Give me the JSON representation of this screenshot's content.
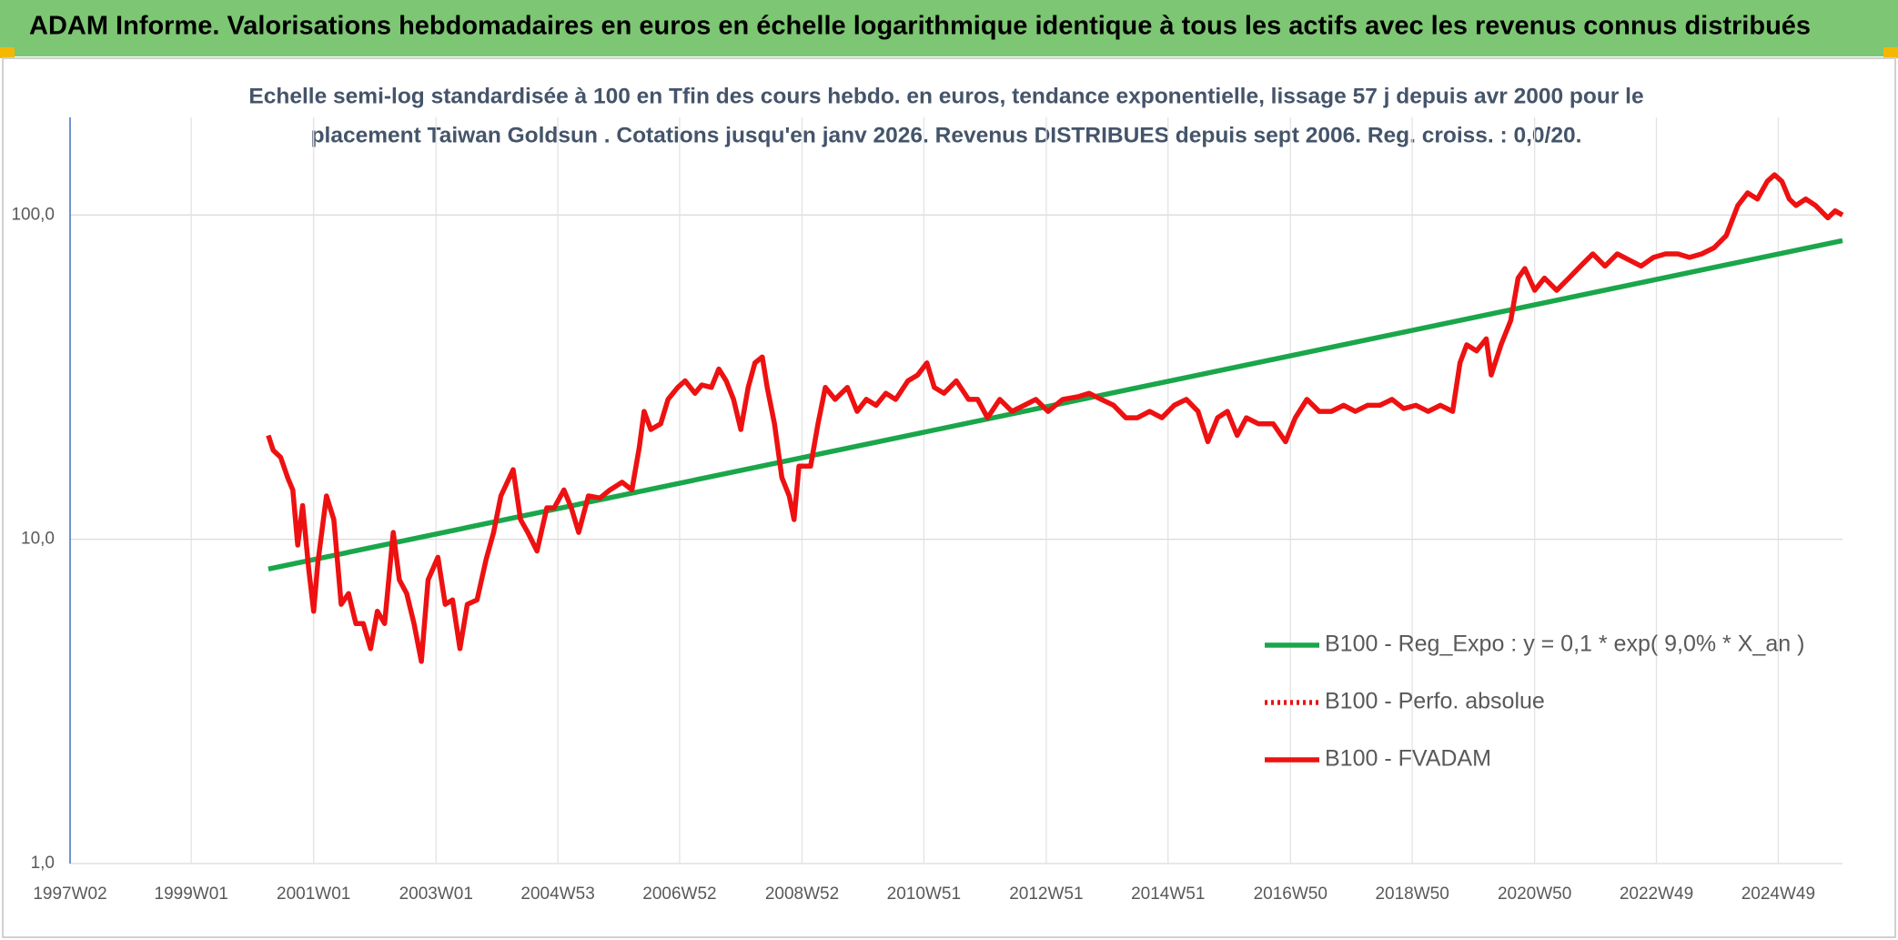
{
  "header": {
    "title": "ADAM Informe. Valorisations hebdomadaires en euros en échelle logarithmique identique à tous les actifs avec les revenus connus distribués"
  },
  "chart_data": {
    "type": "line",
    "subtitle": [
      "Echelle semi-log standardisée à 100 en Tfin des cours hebdo. en euros, tendance exponentielle, lissage 57 j depuis avr 2000 pour le",
      "placement Taiwan Goldsun . Cotations jusqu'en janv 2026. Revenus DISTRIBUES depuis sept 2006. Reg. croiss. : 0,0/20."
    ],
    "yscale": "log",
    "grid": true,
    "ylim": [
      1,
      200
    ],
    "yticks": [
      {
        "value": 1,
        "label": "1,0"
      },
      {
        "value": 10,
        "label": "10,0"
      },
      {
        "value": 100,
        "label": "100,0"
      }
    ],
    "xlim": [
      1997.02,
      2025.98
    ],
    "xticks": [
      {
        "value": 1997.02,
        "label": "1997W02"
      },
      {
        "value": 1999.0,
        "label": "1999W01"
      },
      {
        "value": 2001.0,
        "label": "2001W01"
      },
      {
        "value": 2003.0,
        "label": "2003W01"
      },
      {
        "value": 2004.99,
        "label": "2004W53"
      },
      {
        "value": 2006.98,
        "label": "2006W52"
      },
      {
        "value": 2008.98,
        "label": "2008W52"
      },
      {
        "value": 2010.97,
        "label": "2010W51"
      },
      {
        "value": 2012.97,
        "label": "2012W51"
      },
      {
        "value": 2014.96,
        "label": "2014W51"
      },
      {
        "value": 2016.96,
        "label": "2016W50"
      },
      {
        "value": 2018.95,
        "label": "2018W50"
      },
      {
        "value": 2020.95,
        "label": "2020W50"
      },
      {
        "value": 2022.94,
        "label": "2022W49"
      },
      {
        "value": 2024.93,
        "label": "2024W49"
      }
    ],
    "series": [
      {
        "name": "B100 - Reg_Expo : y = 0,1 * exp( 9,0% *  X_an )",
        "color": "#1aa64a",
        "dash": "solid",
        "x": [
          2000.26,
          2025.98
        ],
        "values": [
          8.1,
          83.4
        ]
      },
      {
        "name": "B100 - Perfo. absolue",
        "color": "#ee1111",
        "dash": "dotted",
        "x": [],
        "values": []
      },
      {
        "name": "B100 - FVADAM",
        "color": "#ee1111",
        "dash": "solid",
        "x": [
          2000.26,
          2000.34,
          2000.46,
          2000.58,
          2000.66,
          2000.74,
          2000.82,
          2000.92,
          2001.0,
          2001.07,
          2001.21,
          2001.33,
          2001.45,
          2001.57,
          2001.69,
          2001.81,
          2001.93,
          2002.04,
          2002.16,
          2002.3,
          2002.4,
          2002.52,
          2002.64,
          2002.76,
          2002.87,
          2003.03,
          2003.15,
          2003.27,
          2003.39,
          2003.51,
          2003.67,
          2003.82,
          2003.94,
          2004.06,
          2004.26,
          2004.38,
          2004.5,
          2004.65,
          2004.81,
          2004.93,
          2005.09,
          2005.21,
          2005.33,
          2005.49,
          2005.68,
          2005.84,
          2006.04,
          2006.2,
          2006.32,
          2006.4,
          2006.51,
          2006.67,
          2006.79,
          2006.95,
          2007.07,
          2007.23,
          2007.34,
          2007.5,
          2007.62,
          2007.74,
          2007.86,
          2007.98,
          2008.1,
          2008.21,
          2008.33,
          2008.41,
          2008.53,
          2008.65,
          2008.77,
          2008.85,
          2008.93,
          2009.12,
          2009.24,
          2009.36,
          2009.52,
          2009.72,
          2009.88,
          2010.03,
          2010.19,
          2010.35,
          2010.51,
          2010.71,
          2010.87,
          2011.02,
          2011.14,
          2011.3,
          2011.5,
          2011.7,
          2011.85,
          2012.01,
          2012.21,
          2012.41,
          2012.61,
          2012.8,
          2013.0,
          2013.24,
          2013.48,
          2013.67,
          2013.87,
          2014.07,
          2014.27,
          2014.46,
          2014.66,
          2014.86,
          2015.06,
          2015.26,
          2015.45,
          2015.61,
          2015.77,
          2015.93,
          2016.09,
          2016.24,
          2016.44,
          2016.68,
          2016.88,
          2017.04,
          2017.23,
          2017.43,
          2017.63,
          2017.83,
          2018.02,
          2018.22,
          2018.42,
          2018.62,
          2018.81,
          2019.01,
          2019.21,
          2019.41,
          2019.61,
          2019.73,
          2019.84,
          2020.0,
          2020.16,
          2020.24,
          2020.4,
          2020.56,
          2020.68,
          2020.79,
          2020.95,
          2021.11,
          2021.31,
          2021.51,
          2021.7,
          2021.9,
          2022.1,
          2022.3,
          2022.49,
          2022.69,
          2022.89,
          2023.09,
          2023.29,
          2023.48,
          2023.68,
          2023.88,
          2024.08,
          2024.27,
          2024.43,
          2024.59,
          2024.75,
          2024.87,
          2024.99,
          2025.11,
          2025.22,
          2025.38,
          2025.54,
          2025.74,
          2025.86,
          2025.98
        ],
        "values": [
          20.9,
          18.8,
          17.9,
          15.4,
          14.2,
          9.6,
          12.7,
          8.1,
          6.0,
          8.5,
          13.6,
          11.5,
          6.3,
          6.8,
          5.5,
          5.5,
          4.6,
          6.0,
          5.5,
          10.5,
          7.5,
          6.8,
          5.5,
          4.2,
          7.5,
          8.8,
          6.3,
          6.5,
          4.6,
          6.3,
          6.5,
          8.7,
          10.5,
          13.6,
          16.4,
          11.5,
          10.5,
          9.2,
          12.5,
          12.5,
          14.2,
          12.5,
          10.5,
          13.6,
          13.4,
          14.2,
          15.0,
          14.2,
          19.2,
          24.8,
          21.8,
          22.7,
          27.0,
          29.4,
          30.8,
          28.2,
          29.9,
          29.4,
          33.5,
          30.8,
          27.0,
          21.8,
          29.4,
          35.0,
          36.5,
          29.4,
          22.7,
          15.5,
          13.6,
          11.5,
          16.8,
          16.8,
          22.7,
          29.4,
          27.0,
          29.4,
          24.8,
          27.0,
          25.9,
          28.2,
          27.0,
          30.8,
          32.1,
          35.0,
          29.4,
          28.2,
          30.8,
          27.0,
          27.0,
          23.7,
          27.0,
          24.8,
          25.9,
          27.0,
          24.8,
          27.0,
          27.5,
          28.2,
          27.0,
          25.9,
          23.7,
          23.7,
          24.8,
          23.7,
          25.9,
          27.0,
          24.8,
          20.0,
          23.7,
          24.8,
          20.9,
          23.7,
          22.7,
          22.7,
          20.0,
          23.7,
          27.0,
          24.8,
          24.8,
          25.9,
          24.8,
          25.9,
          25.9,
          27.0,
          25.3,
          25.9,
          24.8,
          25.9,
          24.8,
          35.0,
          39.8,
          38.1,
          41.5,
          32.1,
          39.8,
          47.3,
          63.9,
          68.4,
          58.6,
          63.9,
          58.6,
          63.9,
          69.6,
          75.9,
          69.6,
          75.9,
          72.7,
          69.6,
          74.0,
          75.9,
          75.9,
          74.0,
          75.9,
          79.2,
          86.4,
          107,
          117,
          112,
          127,
          133,
          127,
          112,
          107,
          112,
          107,
          98,
          103,
          100
        ]
      }
    ]
  }
}
